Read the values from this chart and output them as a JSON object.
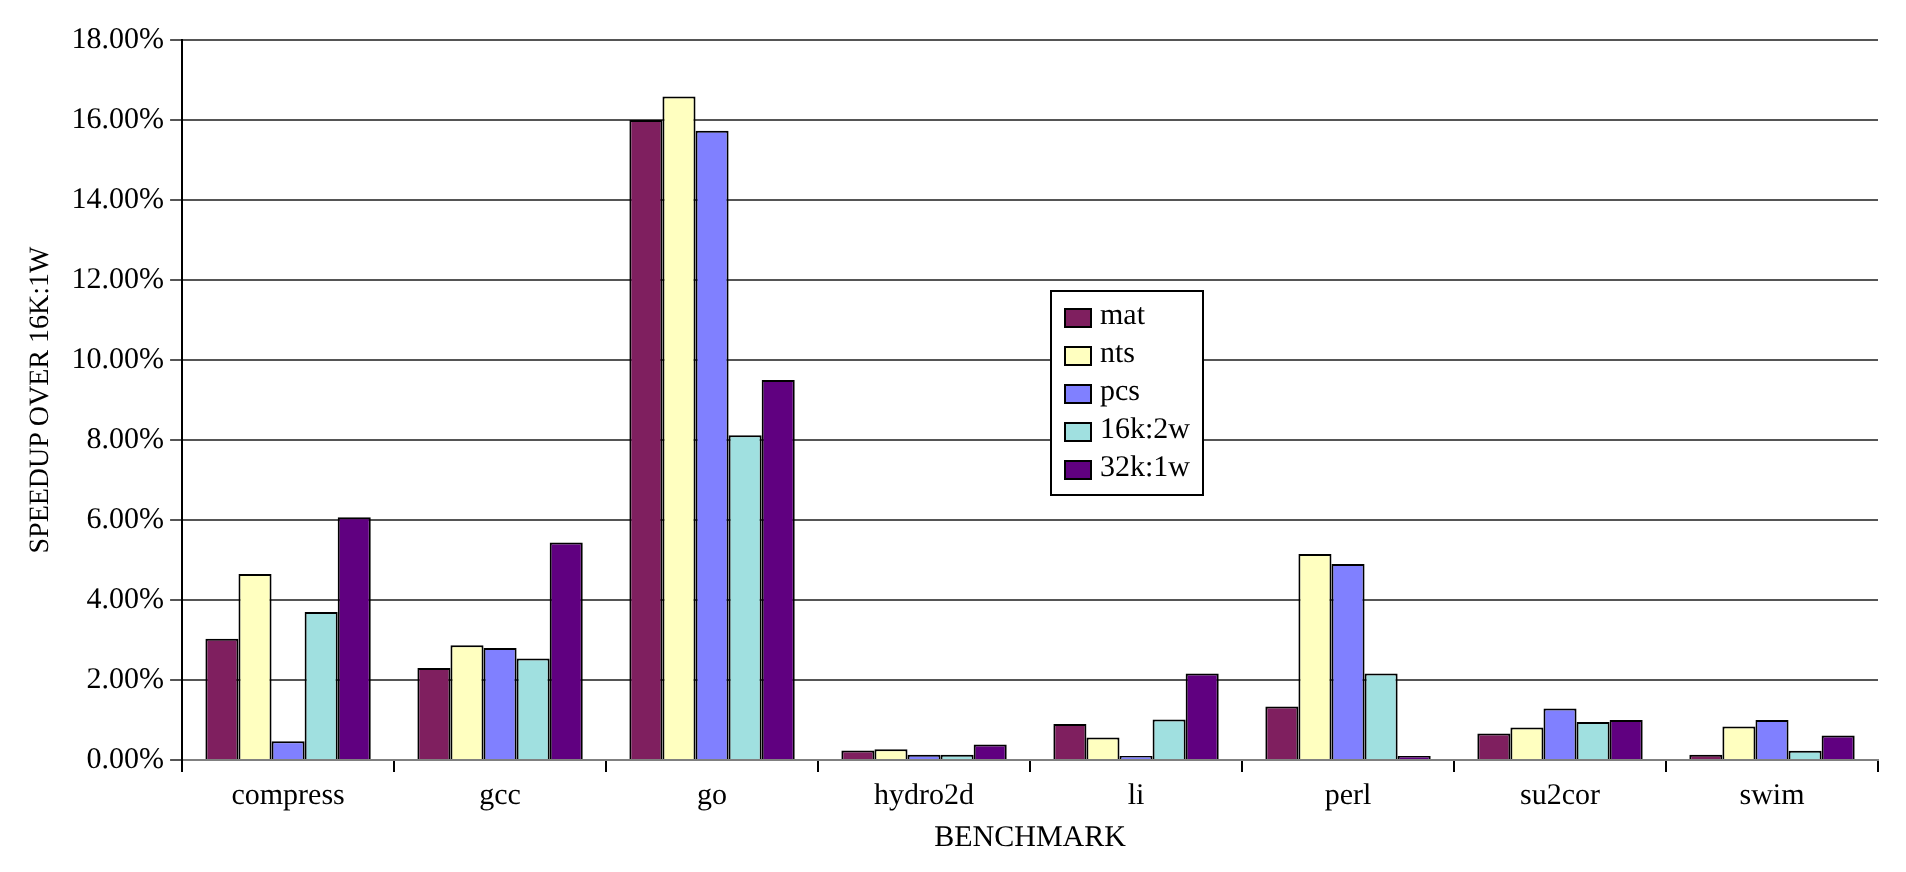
{
  "chart_data": {
    "type": "bar",
    "xlabel": "BENCHMARK",
    "ylabel": "SPEEDUP OVER 16K:1W",
    "categories": [
      "compress",
      "gcc",
      "go",
      "hydro2d",
      "li",
      "perl",
      "su2cor",
      "swim"
    ],
    "series": [
      {
        "name": "mat",
        "color": "#7f1f5f",
        "values": [
          3.03,
          2.3,
          16.0,
          0.24,
          0.9,
          1.34,
          0.66,
          0.13
        ]
      },
      {
        "name": "nts",
        "color": "#ffffc0",
        "values": [
          4.65,
          2.87,
          16.59,
          0.27,
          0.56,
          5.15,
          0.81,
          0.84
        ]
      },
      {
        "name": "pcs",
        "color": "#8080ff",
        "values": [
          0.47,
          2.8,
          15.73,
          0.13,
          0.1,
          4.9,
          1.29,
          1.0
        ]
      },
      {
        "name": "16k:2w",
        "color": "#a0e0e0",
        "values": [
          3.7,
          2.54,
          8.12,
          0.13,
          1.01,
          2.16,
          0.95,
          0.23
        ]
      },
      {
        "name": "32k:1w",
        "color": "#600080",
        "values": [
          6.07,
          5.44,
          9.5,
          0.39,
          2.16,
          0.1,
          1.0,
          0.61
        ]
      }
    ],
    "ylim": [
      0,
      18
    ],
    "yticks": [
      {
        "value": 0,
        "label": "0.00%"
      },
      {
        "value": 2,
        "label": "2.00%"
      },
      {
        "value": 4,
        "label": "4.00%"
      },
      {
        "value": 6,
        "label": "6.00%"
      },
      {
        "value": 8,
        "label": "8.00%"
      },
      {
        "value": 10,
        "label": "10.00%"
      },
      {
        "value": 12,
        "label": "12.00%"
      },
      {
        "value": 14,
        "label": "14.00%"
      },
      {
        "value": 16,
        "label": "16.00%"
      },
      {
        "value": 18,
        "label": "18.00%"
      }
    ],
    "grid": "y",
    "legend": "center"
  }
}
